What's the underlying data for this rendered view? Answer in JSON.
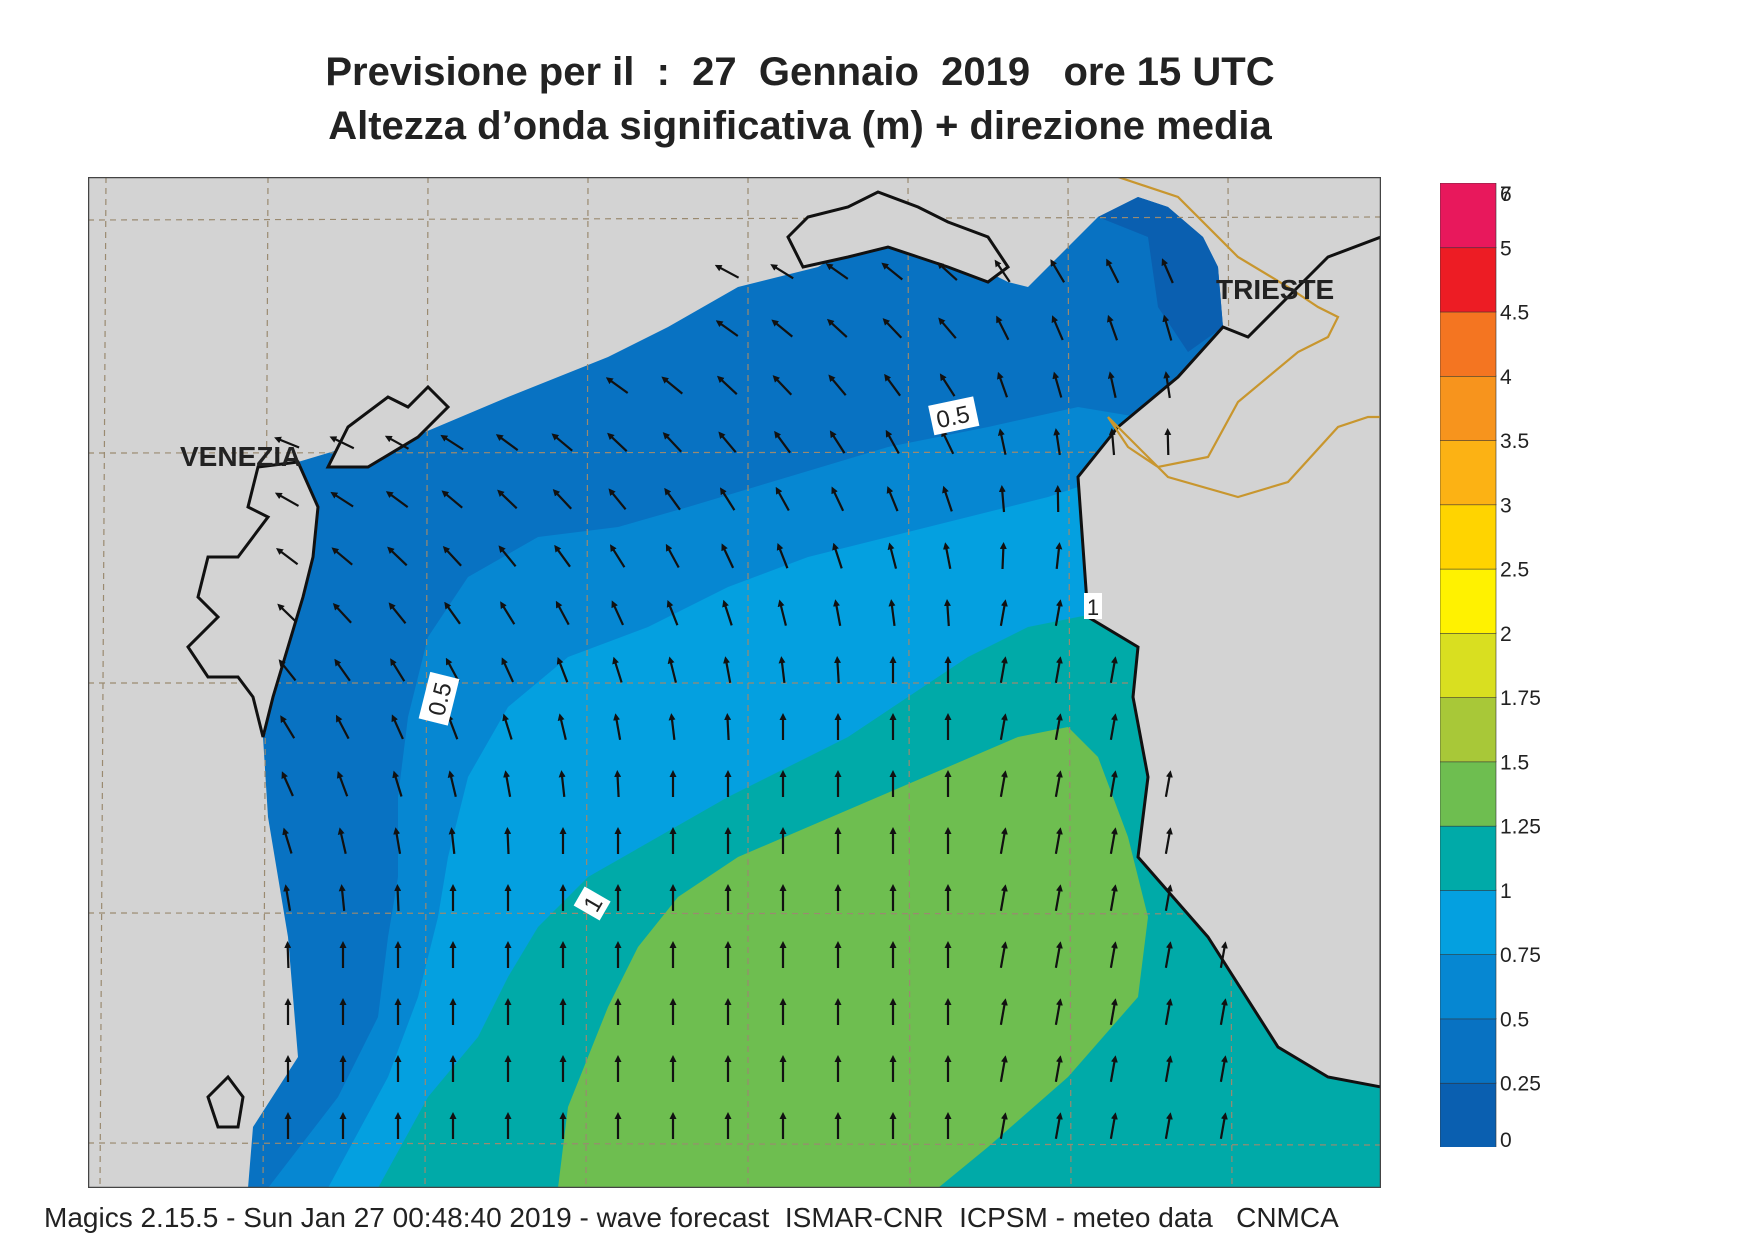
{
  "header": {
    "title_line1": "Previsione per il  :  27  Gennaio  2019   ore 15 UTC",
    "title_line2": "Altezza d’onda significativa (m) + direzione media"
  },
  "map": {
    "city_labels": [
      "VENEZIA",
      "TRIESTE"
    ],
    "contour_labels": [
      "0.5",
      "0.5",
      "1",
      "1"
    ],
    "land_color": "#d3d3d3",
    "coast_color": "#111111",
    "border_color": "#c8962e",
    "grid_color": "#9a8a70",
    "arrow_color": "#111111"
  },
  "colorbar": {
    "ticks": [
      "0",
      "0.25",
      "0.5",
      "0.75",
      "1",
      "1.25",
      "1.5",
      "1.75",
      "2",
      "2.5",
      "3",
      "3.5",
      "4",
      "4.5",
      "5",
      "6",
      "7"
    ],
    "colors": [
      "#0a5fb0",
      "#0872c2",
      "#0687d2",
      "#04a0e0",
      "#00aaa8",
      "#6ebe50",
      "#a8c838",
      "#d9df20",
      "#fff200",
      "#ffd400",
      "#fcb214",
      "#f7941d",
      "#f47521",
      "#ed1c24",
      "#e8185c"
    ]
  },
  "footer": {
    "text": "Magics 2.15.5 - Sun Jan 27 00:48:40 2019 - wave forecast  ISMAR-CNR  ICPSM - meteo data   CNMCA"
  }
}
